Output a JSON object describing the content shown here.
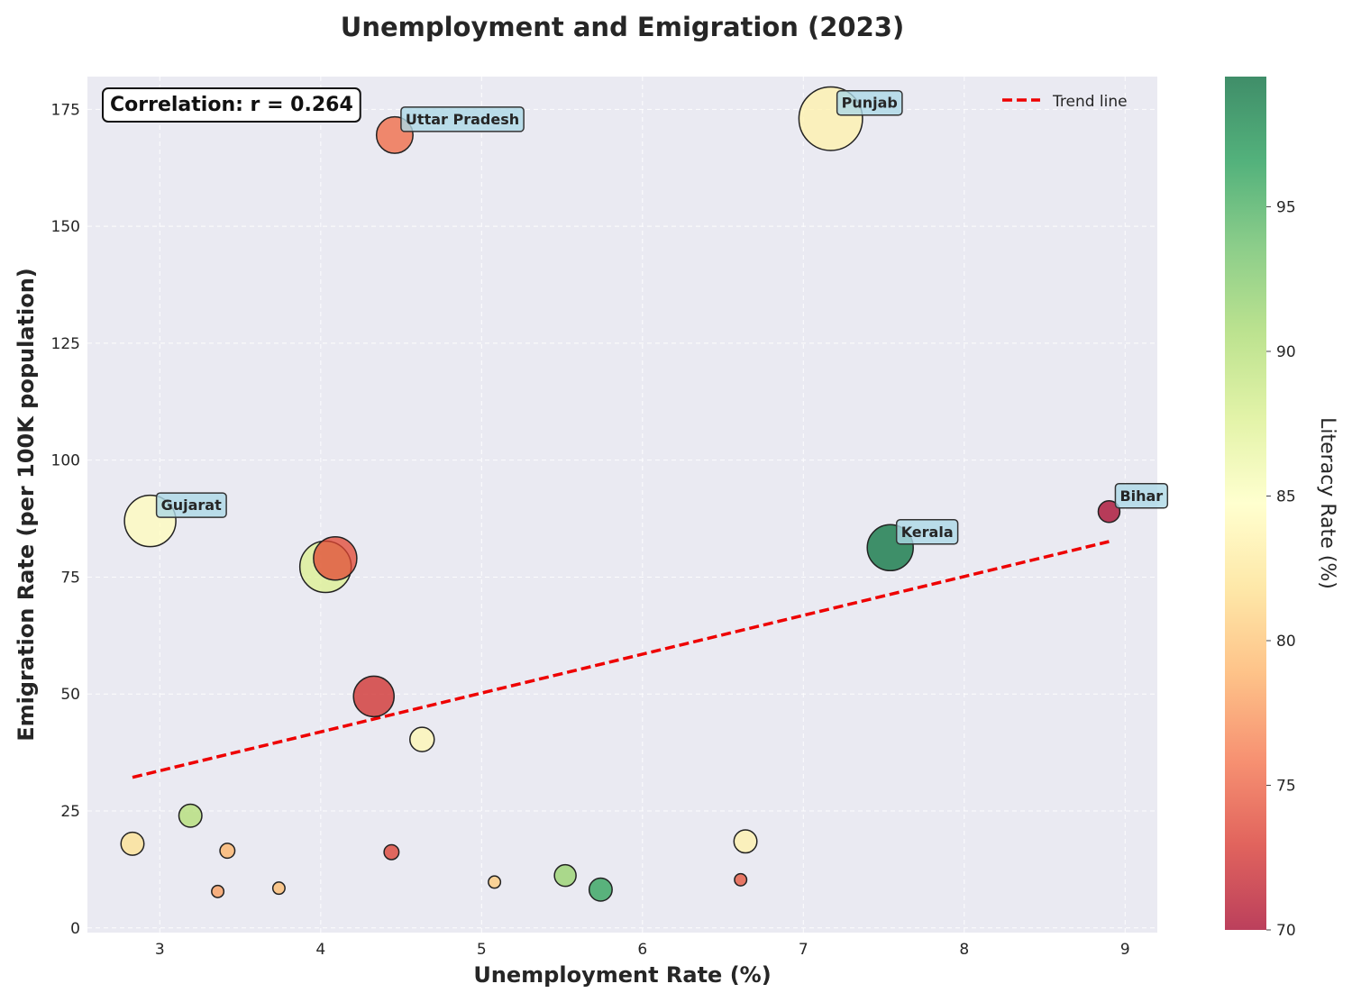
{
  "chart_data": {
    "type": "scatter",
    "title": "Unemployment and Emigration (2023)",
    "xlabel": "Unemployment Rate (%)",
    "ylabel": "Emigration Rate (per 100K population)",
    "xlim": [
      2.55,
      9.2
    ],
    "ylim": [
      -1,
      182
    ],
    "xticks": [
      3,
      4,
      5,
      6,
      7,
      8,
      9
    ],
    "yticks": [
      0,
      25,
      50,
      75,
      100,
      125,
      150,
      175
    ],
    "grid": true,
    "legend_position": "top-right",
    "legend_entries": [
      "Trend line"
    ],
    "annotation": "Correlation: r = 0.264",
    "color_scale": {
      "label": "Literacy Rate (%)",
      "min": 70,
      "max": 99.5,
      "ticks": [
        70,
        75,
        80,
        85,
        90,
        95
      ],
      "colormap": "RdYlGn"
    },
    "trend_line": {
      "color": "#ee0000",
      "x": [
        2.83,
        8.9
      ],
      "y": [
        32.2,
        82.6
      ]
    },
    "points": [
      {
        "label": "Punjab",
        "x": 7.17,
        "y": 173.0,
        "literacy": 83.5,
        "size": 4.7
      },
      {
        "label": "Uttar Pradesh",
        "x": 4.46,
        "y": 169.5,
        "literacy": 75.5,
        "size": 2.7
      },
      {
        "label": "Gujarat",
        "x": 2.94,
        "y": 87.0,
        "literacy": 84.5,
        "size": 3.8
      },
      {
        "label": "Bihar",
        "x": 8.9,
        "y": 89.0,
        "literacy": 70.0,
        "size": 1.6
      },
      {
        "label": "Kerala",
        "x": 7.54,
        "y": 81.3,
        "literacy": 99.0,
        "size": 3.4
      },
      {
        "label": "",
        "x": 4.09,
        "y": 79.0,
        "literacy": 74.0,
        "size": 3.2
      },
      {
        "label": "",
        "x": 4.03,
        "y": 77.2,
        "literacy": 87.5,
        "size": 3.8
      },
      {
        "label": "",
        "x": 4.33,
        "y": 49.5,
        "literacy": 72.5,
        "size": 3.0
      },
      {
        "label": "",
        "x": 4.63,
        "y": 40.3,
        "literacy": 84.0,
        "size": 1.8
      },
      {
        "label": "",
        "x": 3.19,
        "y": 24.0,
        "literacy": 90.0,
        "size": 1.7
      },
      {
        "label": "",
        "x": 2.83,
        "y": 18.0,
        "literacy": 82.0,
        "size": 1.7
      },
      {
        "label": "",
        "x": 6.64,
        "y": 18.5,
        "literacy": 83.5,
        "size": 1.7
      },
      {
        "label": "",
        "x": 3.42,
        "y": 16.5,
        "literacy": 79.0,
        "size": 1.1
      },
      {
        "label": "",
        "x": 4.44,
        "y": 16.2,
        "literacy": 73.5,
        "size": 1.1
      },
      {
        "label": "",
        "x": 5.52,
        "y": 11.2,
        "literacy": 91.5,
        "size": 1.6
      },
      {
        "label": "",
        "x": 6.61,
        "y": 10.3,
        "literacy": 74.5,
        "size": 0.9
      },
      {
        "label": "",
        "x": 5.08,
        "y": 9.8,
        "literacy": 80.5,
        "size": 0.9
      },
      {
        "label": "",
        "x": 3.74,
        "y": 8.5,
        "literacy": 79.5,
        "size": 0.9
      },
      {
        "label": "",
        "x": 5.74,
        "y": 8.2,
        "literacy": 96.0,
        "size": 1.7
      },
      {
        "label": "",
        "x": 3.36,
        "y": 7.8,
        "literacy": 78.0,
        "size": 0.9
      }
    ]
  }
}
